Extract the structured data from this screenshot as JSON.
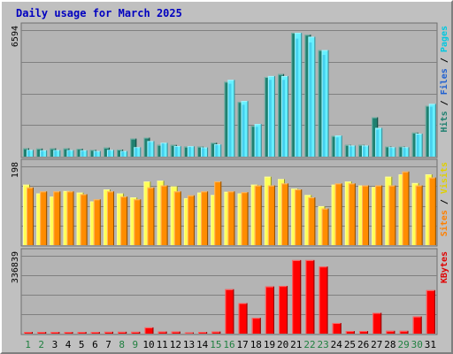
{
  "chart_data": {
    "type": "bar",
    "title": "Daily usage for March 2025",
    "categories": [
      "1",
      "2",
      "3",
      "4",
      "5",
      "6",
      "7",
      "8",
      "9",
      "10",
      "11",
      "12",
      "13",
      "14",
      "15",
      "16",
      "17",
      "18",
      "19",
      "20",
      "21",
      "22",
      "23",
      "24",
      "25",
      "26",
      "27",
      "28",
      "29",
      "30",
      "31"
    ],
    "weekend_days": [
      "1",
      "2",
      "8",
      "9",
      "15",
      "16",
      "22",
      "23",
      "29",
      "30"
    ],
    "panels": [
      {
        "id": "pages-files-hits",
        "ymax_label": "6594",
        "ymax": 6594,
        "legend": [
          "Pages",
          "Files",
          "Hits"
        ],
        "series": [
          {
            "name": "Hits",
            "color": "#66f0ff",
            "values": [
              350,
              330,
              340,
              340,
              330,
              290,
              350,
              290,
              490,
              810,
              720,
              550,
              540,
              480,
              640,
              4000,
              2900,
              1700,
              4200,
              4200,
              6450,
              6250,
              5550,
              1100,
              580,
              580,
              1500,
              490,
              490,
              1200,
              2750
            ]
          },
          {
            "name": "Files",
            "color": "#2db8e0",
            "values": [
              320,
              310,
              320,
              320,
              310,
              270,
              330,
              270,
              460,
              770,
              690,
              520,
              510,
              450,
              610,
              3800,
              2700,
              1550,
              4000,
              4000,
              6150,
              5950,
              5300,
              1000,
              540,
              540,
              1400,
              460,
              460,
              1150,
              2600
            ]
          },
          {
            "name": "Pages",
            "color": "#208070",
            "values": [
              430,
              420,
              430,
              430,
              410,
              350,
              470,
              370,
              940,
              990,
              610,
              610,
              520,
              520,
              720,
              3900,
              2850,
              1600,
              4150,
              4300,
              6450,
              6350,
              5550,
              1080,
              610,
              610,
              2050,
              530,
              530,
              1250,
              2650
            ]
          }
        ]
      },
      {
        "id": "visits-sites",
        "ymax_label": "198",
        "ymax": 198,
        "legend": [
          "Visits",
          "Sites"
        ],
        "series": [
          {
            "name": "Visits",
            "color": "#ffff55",
            "values": [
              152,
              130,
              122,
              136,
              132,
              110,
              140,
              130,
              120,
              160,
              162,
              148,
              118,
              132,
              126,
              134,
              130,
              152,
              172,
              166,
              142,
              126,
              98,
              152,
              160,
              150,
              146,
              172,
              178,
              156,
              178
            ]
          },
          {
            "name": "Sites",
            "color": "#ff8c00",
            "values": [
              145,
              135,
              135,
              135,
              128,
              115,
              135,
              122,
              115,
              145,
              150,
              135,
              125,
              135,
              160,
              135,
              133,
              150,
              150,
              155,
              140,
              120,
              92,
              155,
              155,
              150,
              150,
              150,
              185,
              150,
              170
            ]
          }
        ]
      },
      {
        "id": "kbytes",
        "ymax_label": "336839",
        "ymax": 336839,
        "legend": [
          "KBytes"
        ],
        "series": [
          {
            "name": "KBytes",
            "color": "#ff0000",
            "values": [
              7000,
              7000,
              7000,
              7000,
              7000,
              7000,
              8000,
              8000,
              8000,
              27000,
              9000,
              9000,
              5000,
              7000,
              9000,
              192000,
              132000,
              68000,
              204000,
              206000,
              318000,
              318000,
              290000,
              46000,
              11000,
              11000,
              90000,
              12000,
              12000,
              74000,
              188000
            ]
          }
        ]
      }
    ]
  }
}
